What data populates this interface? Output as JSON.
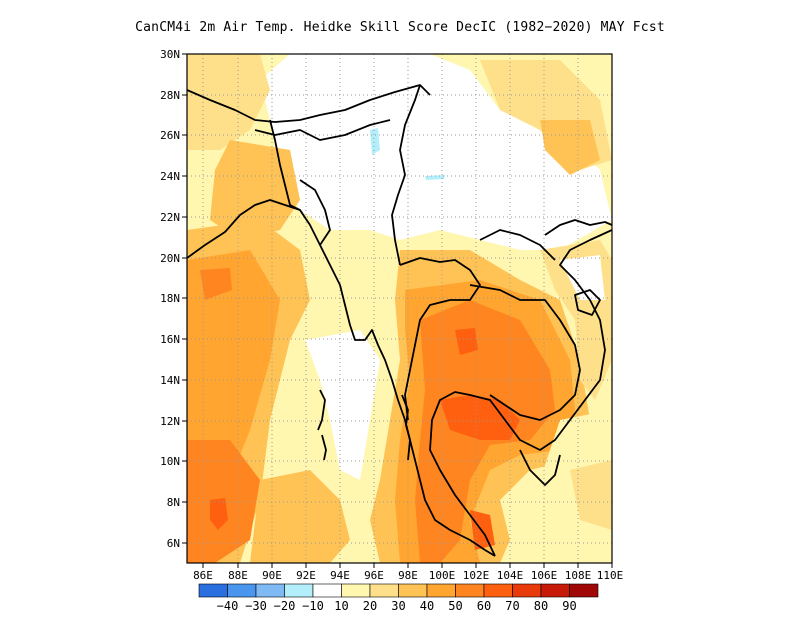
{
  "title": "CanCM4i  2m Air Temp. Heidke Skill Score DecIC (1982−2020) MAY Fcst",
  "map": {
    "lon_range": [
      85,
      110
    ],
    "lat_range": [
      5,
      30
    ],
    "lon_ticks": [
      "86E",
      "88E",
      "90E",
      "92E",
      "94E",
      "96E",
      "98E",
      "100E",
      "102E",
      "104E",
      "106E",
      "108E",
      "110E"
    ],
    "lat_ticks": [
      "6N",
      "8N",
      "10N",
      "12N",
      "14N",
      "16N",
      "18N",
      "20N",
      "22N",
      "24N",
      "26N",
      "28N",
      "30N"
    ],
    "grid": true
  },
  "colorbar": {
    "colors": [
      "#2a6fe0",
      "#4a95ee",
      "#7fbaf5",
      "#b3effa",
      "#ffffff",
      "#fff6b0",
      "#ffe08a",
      "#ffc255",
      "#ffa530",
      "#ff8520",
      "#ff6010",
      "#e83a0a",
      "#c81a08",
      "#a00808"
    ],
    "labels": [
      "−40",
      "−30",
      "−20",
      "−10",
      "10",
      "20",
      "30",
      "40",
      "50",
      "60",
      "70",
      "80",
      "90"
    ]
  }
}
